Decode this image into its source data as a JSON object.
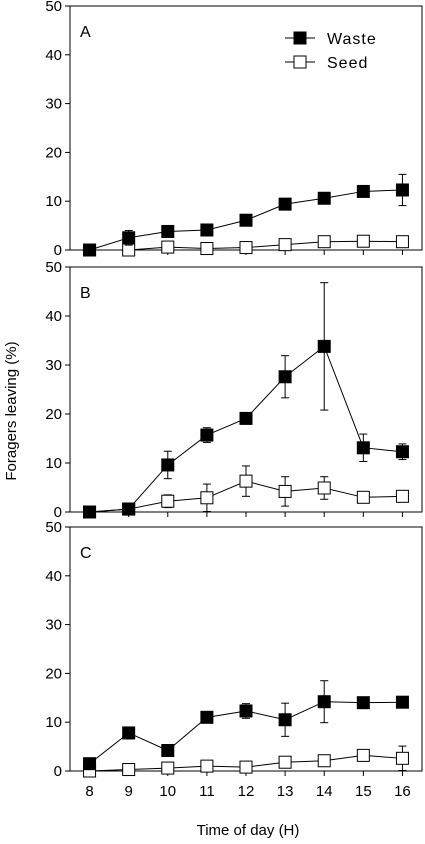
{
  "chart_data": {
    "type": "line",
    "ylabel": "Foragers leaving (%)",
    "xlabel": "Time of day (H)",
    "x": [
      8,
      9,
      10,
      11,
      12,
      13,
      14,
      15,
      16
    ],
    "xlim": [
      7.5,
      16.5
    ],
    "ylim": [
      0,
      50
    ],
    "yticks": [
      0,
      10,
      20,
      30,
      40,
      50
    ],
    "legend": {
      "placement": "top-right",
      "entries": [
        {
          "name": "Waste",
          "marker": "filled-square"
        },
        {
          "name": "Seed",
          "marker": "open-square"
        }
      ]
    },
    "panels": [
      {
        "label": "A",
        "show_legend": true,
        "series": [
          {
            "name": "Waste",
            "values": [
              0,
              2.5,
              3.8,
              4.1,
              6.1,
              9.4,
              10.6,
              12.0,
              12.3
            ],
            "errors": [
              0,
              1.5,
              0.8,
              0.8,
              0.8,
              0.8,
              0.8,
              0.8,
              3.2
            ]
          },
          {
            "name": "Seed",
            "values": [
              0,
              0,
              0.6,
              0.3,
              0.5,
              1.1,
              1.7,
              1.8,
              1.7
            ],
            "errors": [
              0,
              0,
              0.3,
              0.2,
              0.3,
              0.3,
              0.4,
              0.3,
              0.3
            ]
          }
        ]
      },
      {
        "label": "B",
        "show_legend": false,
        "series": [
          {
            "name": "Waste",
            "values": [
              0,
              0.6,
              9.6,
              15.7,
              19.1,
              27.6,
              33.8,
              13.1,
              12.3
            ],
            "errors": [
              0,
              0.3,
              2.8,
              1.5,
              1.0,
              4.3,
              13.0,
              2.8,
              1.6
            ]
          },
          {
            "name": "Seed",
            "values": [
              0,
              0.6,
              2.2,
              2.9,
              6.3,
              4.2,
              4.9,
              3.0,
              3.2
            ],
            "errors": [
              0,
              0.2,
              1.3,
              2.8,
              3.1,
              3.0,
              2.3,
              0.6,
              0.9
            ]
          }
        ]
      },
      {
        "label": "C",
        "show_legend": false,
        "series": [
          {
            "name": "Waste",
            "values": [
              1.5,
              7.8,
              4.2,
              11.0,
              12.3,
              10.5,
              14.2,
              14.0,
              14.1
            ],
            "errors": [
              0.3,
              1.2,
              0.6,
              0.6,
              1.5,
              3.4,
              4.3,
              1.1,
              0.4
            ]
          },
          {
            "name": "Seed",
            "values": [
              0,
              0.3,
              0.6,
              1.0,
              0.8,
              1.8,
              2.1,
              3.2,
              2.6
            ],
            "errors": [
              0,
              0.2,
              0.3,
              0.3,
              0.2,
              0.3,
              0.3,
              0.3,
              2.5
            ]
          }
        ]
      }
    ]
  }
}
